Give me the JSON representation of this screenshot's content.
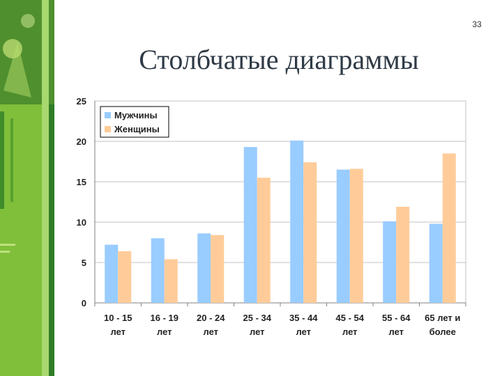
{
  "slide": {
    "number": "33",
    "title": "Столбчатые диаграммы"
  },
  "colors": {
    "men": "#99ccff",
    "women": "#ffcc99",
    "grid": "#c0c0c0",
    "axis": "#808080",
    "strip_dark": "#2a6e1f",
    "strip_light": "#8cc63f"
  },
  "chart_data": {
    "type": "bar",
    "categories": [
      [
        "10 - 15",
        "лет"
      ],
      [
        "16 - 19",
        "лет"
      ],
      [
        "20 - 24",
        "лет"
      ],
      [
        "25 - 34",
        "лет"
      ],
      [
        "35 - 44",
        "лет"
      ],
      [
        "45 - 54",
        "лет"
      ],
      [
        "55 - 64",
        "лет"
      ],
      [
        "65 лет и",
        "более"
      ]
    ],
    "series": [
      {
        "name": "Мужчины",
        "values": [
          7.2,
          8.0,
          8.6,
          19.3,
          20.1,
          16.5,
          10.1,
          9.8
        ]
      },
      {
        "name": "Женщины",
        "values": [
          6.4,
          5.4,
          8.4,
          15.5,
          17.4,
          16.6,
          11.9,
          18.5
        ]
      }
    ],
    "ylim": [
      0,
      25
    ],
    "yticks": [
      "0",
      "5",
      "10",
      "15",
      "20",
      "25"
    ],
    "grid": true,
    "legend": "top-left"
  }
}
